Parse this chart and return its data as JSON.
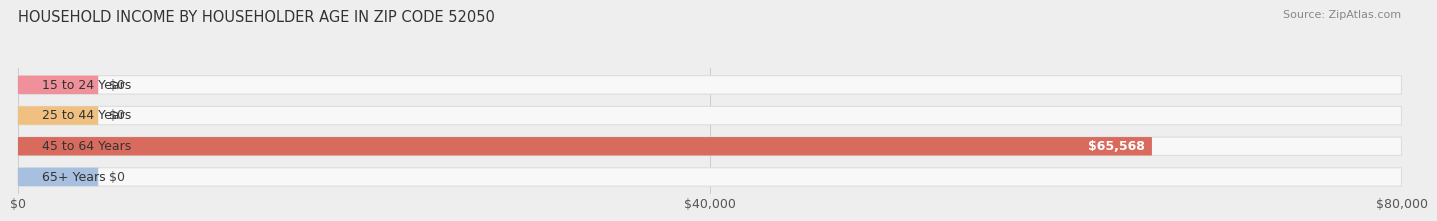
{
  "title": "HOUSEHOLD INCOME BY HOUSEHOLDER AGE IN ZIP CODE 52050",
  "source": "Source: ZipAtlas.com",
  "categories": [
    "15 to 24 Years",
    "25 to 44 Years",
    "45 to 64 Years",
    "65+ Years"
  ],
  "values": [
    0,
    0,
    65568,
    0
  ],
  "bar_colors": [
    "#f0909a",
    "#f0c080",
    "#d96a5e",
    "#a8c0e0"
  ],
  "label_colors": [
    "#444444",
    "#444444",
    "#ffffff",
    "#444444"
  ],
  "value_labels": [
    "$0",
    "$0",
    "$65,568",
    "$0"
  ],
  "xlim": [
    0,
    80000
  ],
  "xticks": [
    0,
    40000,
    80000
  ],
  "xticklabels": [
    "$0",
    "$40,000",
    "$80,000"
  ],
  "background_color": "#eeeeee",
  "bar_background_color": "#f8f8f8",
  "title_fontsize": 10.5,
  "source_fontsize": 8,
  "label_fontsize": 9,
  "tick_fontsize": 9
}
